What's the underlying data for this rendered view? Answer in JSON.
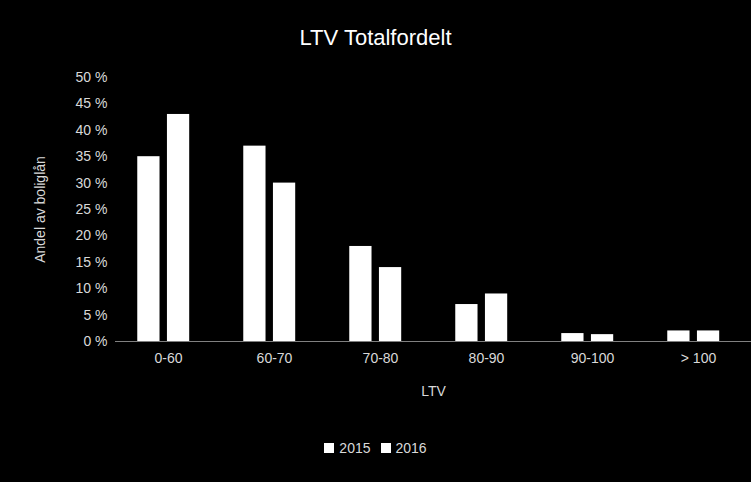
{
  "chart_data": {
    "type": "bar",
    "title": "LTV Totalfordelt",
    "x_label": "LTV",
    "y_label": "Andel av boliglån",
    "categories": [
      "0-60",
      "60-70",
      "70-80",
      "80-90",
      "90-100",
      "> 100"
    ],
    "series": [
      {
        "name": "2015",
        "color": "#ffffff",
        "values": [
          35,
          37,
          18,
          7,
          1.5,
          2
        ]
      },
      {
        "name": "2016",
        "color": "#ffffff",
        "values": [
          43,
          30,
          14,
          9,
          1.3,
          2
        ]
      }
    ],
    "ylim": [
      0,
      50
    ],
    "yticks": [
      {
        "value": 0,
        "label": "0 %"
      },
      {
        "value": 5,
        "label": "5 %"
      },
      {
        "value": 10,
        "label": "10 %"
      },
      {
        "value": 15,
        "label": "15 %"
      },
      {
        "value": 20,
        "label": "20 %"
      },
      {
        "value": 25,
        "label": "25 %"
      },
      {
        "value": 30,
        "label": "30 %"
      },
      {
        "value": 35,
        "label": "35 %"
      },
      {
        "value": 40,
        "label": "40 %"
      },
      {
        "value": 45,
        "label": "45 %"
      },
      {
        "value": 50,
        "label": "50 %"
      }
    ],
    "grid": false,
    "legend": "bottom"
  }
}
